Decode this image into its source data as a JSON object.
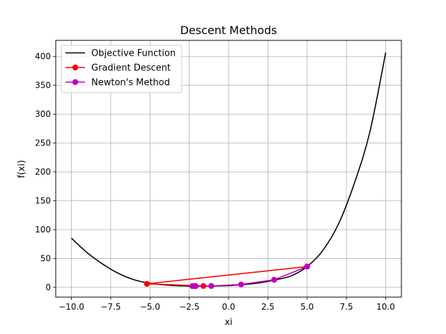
{
  "chart_data": {
    "type": "line",
    "title": "Descent Methods",
    "xlabel": "xi",
    "ylabel": "f(xi)",
    "xlim": [
      -11.0,
      11.0
    ],
    "ylim": [
      -17.0,
      428.0
    ],
    "xticks": [
      -10.0,
      -7.5,
      -5.0,
      -2.5,
      0.0,
      2.5,
      5.0,
      7.5,
      10.0
    ],
    "xtick_labels": [
      "−10.0",
      "−7.5",
      "−5.0",
      "−2.5",
      "0.0",
      "2.5",
      "5.0",
      "7.5",
      "10.0"
    ],
    "yticks": [
      0,
      50,
      100,
      150,
      200,
      250,
      300,
      350,
      400
    ],
    "ytick_labels": [
      "0",
      "50",
      "100",
      "150",
      "200",
      "250",
      "300",
      "350",
      "400"
    ],
    "grid": true,
    "legend_position": "upper-left",
    "series": [
      {
        "name": "Objective Function",
        "color": "#000000",
        "marker": "none",
        "x": [
          -10,
          -9,
          -8,
          -7,
          -6,
          -5,
          -4,
          -3,
          -2,
          -1,
          0,
          1,
          2,
          3,
          4,
          5,
          6,
          7,
          8,
          9,
          10
        ],
        "y": [
          85,
          60,
          40,
          24,
          13,
          7,
          4,
          2.5,
          2,
          2.2,
          3,
          5,
          8,
          13,
          20,
          36,
          64,
          110,
          180,
          270,
          407
        ]
      },
      {
        "name": "Gradient Descent",
        "color": "#ff0000",
        "marker": "circle",
        "x": [
          5.0,
          -5.2,
          -1.6,
          -2.1,
          -2.2
        ],
        "y": [
          36,
          6,
          2.3,
          2.0,
          2.0
        ]
      },
      {
        "name": "Newton's Method",
        "color": "#bf00bf",
        "marker": "circle",
        "x": [
          5.0,
          2.9,
          0.8,
          -1.1,
          -2.1,
          -2.3
        ],
        "y": [
          36,
          13,
          5,
          2.3,
          2.0,
          2.0
        ]
      }
    ]
  }
}
